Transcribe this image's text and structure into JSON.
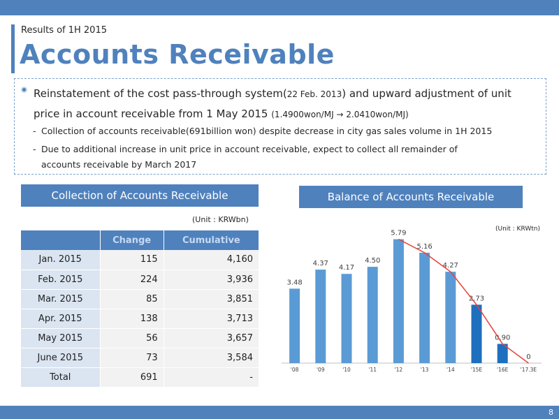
{
  "header": {
    "subtitle": "Results of 1H 2015",
    "title": "Accounts Receivable",
    "page_number": "8"
  },
  "summary": {
    "main_part1": "Reinstatement of the cost pass-through system(",
    "main_date": "22 Feb. 2013",
    "main_part2": ") and upward adjustment of unit",
    "main_line2": "price in account receivable from 1 May 2015 ",
    "main_price": "(1.4900won/MJ → 2.0410won/MJ)",
    "sub1": "Collection of accounts receivable(691billion won) despite decrease in city gas sales volume in 1H 2015",
    "sub2a": "Due to additional increase in unit price in account receivable, expect to collect all remainder of",
    "sub2b": "accounts receivable by March 2017",
    "dash": "-"
  },
  "collection": {
    "title": "Collection of Accounts Receivable",
    "unit": "(Unit :  KRWbn)",
    "headers": [
      "",
      "Change",
      "Cumulative"
    ],
    "rows": [
      {
        "label": "Jan. 2015",
        "change": "115",
        "cumulative": "4,160"
      },
      {
        "label": "Feb. 2015",
        "change": "224",
        "cumulative": "3,936"
      },
      {
        "label": "Mar. 2015",
        "change": "85",
        "cumulative": "3,851"
      },
      {
        "label": "Apr. 2015",
        "change": "138",
        "cumulative": "3,713"
      },
      {
        "label": "May 2015",
        "change": "56",
        "cumulative": "3,657"
      },
      {
        "label": "June 2015",
        "change": "73",
        "cumulative": "3,584"
      }
    ],
    "total": {
      "label": "Total",
      "change": "691",
      "cumulative": "-"
    }
  },
  "balance": {
    "title": "Balance of Accounts Receivable",
    "unit": "(Unit : KRWtn)"
  },
  "chart_data": {
    "type": "bar",
    "categories": [
      "'08",
      "'09",
      "'10",
      "'11",
      "'12",
      "'13",
      "'14",
      "'15E",
      "'16E",
      "'17.3E"
    ],
    "values": [
      3.48,
      4.37,
      4.17,
      4.5,
      5.79,
      5.16,
      4.27,
      2.73,
      0.9,
      0
    ],
    "labels": [
      "3.48",
      "4.37",
      "4.17",
      "4.50",
      "5.79",
      "5.16",
      "4.27",
      "2.73",
      "0.90",
      "0"
    ],
    "estimate_from_index": 7,
    "trend_line_from_index": 4,
    "colors": {
      "actual": "#5b9bd5",
      "estimate": "#1f6fbf",
      "trend": "#e8413c",
      "axis": "#bfbfbf"
    },
    "ylim": [
      0,
      6.2
    ],
    "grid": false,
    "legend": "none"
  },
  "colors": {
    "accent": "#4f81bd",
    "table_label_bg": "#dbe5f1",
    "table_cell_bg": "#f2f2f2"
  }
}
